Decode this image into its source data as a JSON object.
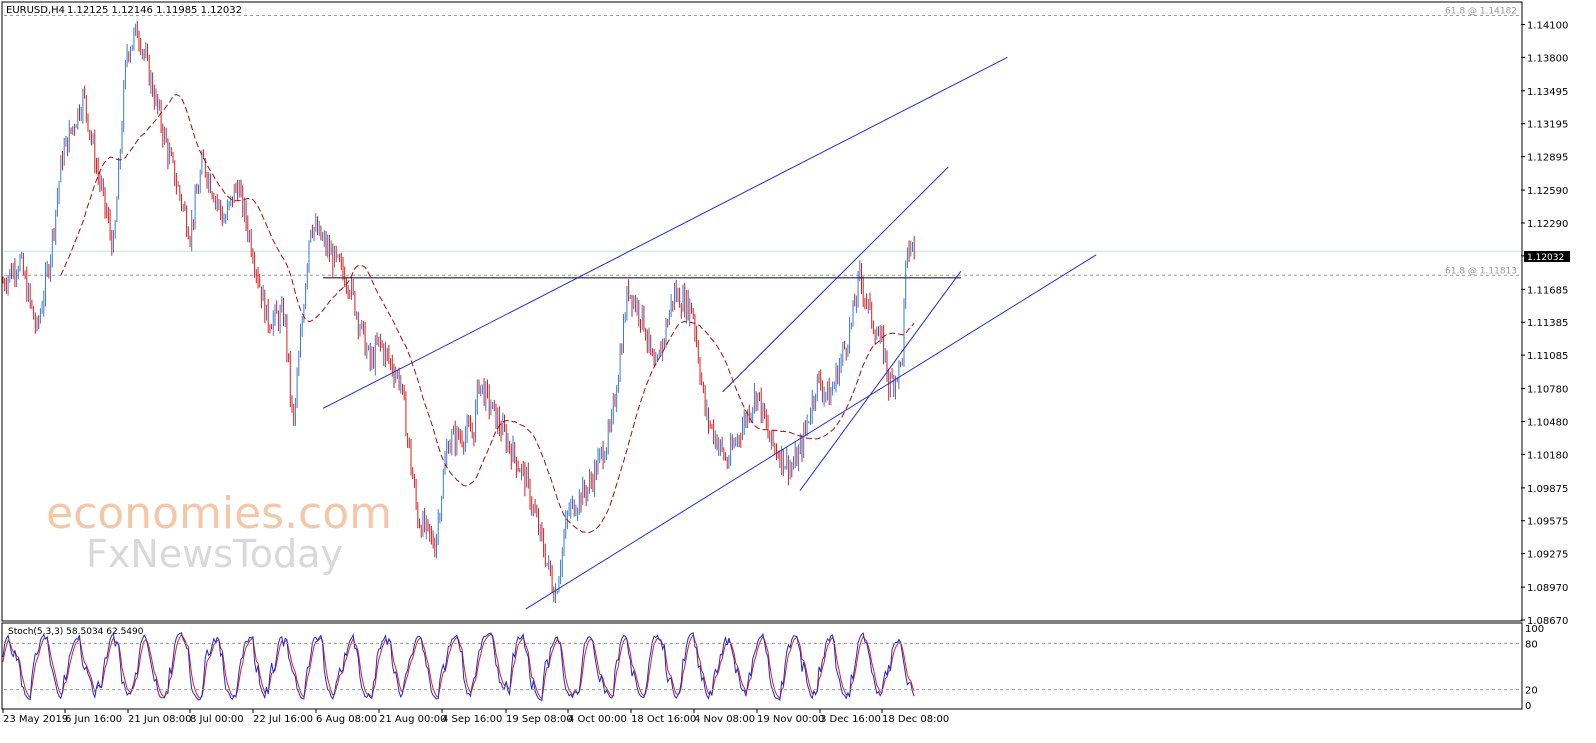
{
  "header": {
    "symbol": "EURUSD,H4",
    "ohlc": "1.12125 1.12146 1.11985 1.12032"
  },
  "indicator": {
    "label": "Stoch(5,3,3) 58.5034 62.5490",
    "scale": [
      100,
      80,
      20,
      0
    ],
    "levels": [
      80,
      20
    ]
  },
  "watermark": {
    "line1": "economies.com",
    "line2": "FxNewsToday"
  },
  "fib_labels": [
    {
      "text": "61.8 @ 1.14182",
      "price": 1.14182
    },
    {
      "text": "61.8 @ 1.11813",
      "price": 1.11813
    }
  ],
  "colors": {
    "bull": "#3a7ad1",
    "bear": "#d81e1e",
    "ma": "#a01010",
    "trend": "#1f2fd6",
    "price_line": "#bfe3ee",
    "stoch_main": "#1c2bd6",
    "stoch_signal": "#e02020"
  },
  "chart_data": {
    "type": "candlestick",
    "instrument": "EURUSD",
    "timeframe": "H4",
    "current_price": "1.12032",
    "ylim": [
      1.0867,
      1.1425
    ],
    "y_ticks": [
      "1.14100",
      "1.13800",
      "1.13495",
      "1.13195",
      "1.12895",
      "1.12590",
      "1.12290",
      "1.11990",
      "1.11685",
      "1.11385",
      "1.11085",
      "1.10780",
      "1.10480",
      "1.10180",
      "1.09875",
      "1.09575",
      "1.09275",
      "1.08970",
      "1.08670"
    ],
    "x_ticks": [
      "23 May 2019",
      "6 Jun 16:00",
      "21 Jun 08:00",
      "8 Jul 00:00",
      "22 Jul 16:00",
      "6 Aug 08:00",
      "21 Aug 00:00",
      "4 Sep 16:00",
      "19 Sep 08:00",
      "4 Oct 00:00",
      "18 Oct 16:00",
      "4 Nov 08:00",
      "19 Nov 00:00",
      "3 Dec 16:00",
      "18 Dec 08:00"
    ],
    "x_range": [
      "23 May 2019",
      "24 Dec 2019"
    ],
    "close_path": [
      [
        "23 May 2019",
        1.1175
      ],
      [
        "27 May 2019",
        1.1195
      ],
      [
        "31 May 2019",
        1.113
      ],
      [
        "3 Jun 2019",
        1.1195
      ],
      [
        "6 Jun 2019",
        1.129
      ],
      [
        "11 Jun 2019",
        1.1345
      ],
      [
        "14 Jun 2019",
        1.128
      ],
      [
        "18 Jun 2019",
        1.1205
      ],
      [
        "21 Jun 2019",
        1.1385
      ],
      [
        "24 Jun 2019",
        1.1405
      ],
      [
        "27 Jun 2019",
        1.1365
      ],
      [
        "2 Jul 2019",
        1.1295
      ],
      [
        "8 Jul 2019",
        1.122
      ],
      [
        "11 Jul 2019",
        1.1285
      ],
      [
        "16 Jul 2019",
        1.123
      ],
      [
        "19 Jul 2019",
        1.1265
      ],
      [
        "22 Jul 2019",
        1.1215
      ],
      [
        "26 Jul 2019",
        1.114
      ],
      [
        "30 Jul 2019",
        1.1145
      ],
      [
        "1 Aug 2019",
        1.104
      ],
      [
        "5 Aug 2019",
        1.123
      ],
      [
        "9 Aug 2019",
        1.1205
      ],
      [
        "14 Aug 2019",
        1.1175
      ],
      [
        "19 Aug 2019",
        1.11
      ],
      [
        "21 Aug 2019",
        1.112
      ],
      [
        "26 Aug 2019",
        1.1085
      ],
      [
        "30 Aug 2019",
        1.096
      ],
      [
        "3 Sep 2019",
        1.0935
      ],
      [
        "6 Sep 2019",
        1.103
      ],
      [
        "12 Sep 2019",
        1.104
      ],
      [
        "13 Sep 2019",
        1.1085
      ],
      [
        "19 Sep 2019",
        1.1035
      ],
      [
        "24 Sep 2019",
        1.0995
      ],
      [
        "1 Oct 2019",
        1.089
      ],
      [
        "4 Oct 2019",
        1.0965
      ],
      [
        "9 Oct 2019",
        1.099
      ],
      [
        "14 Oct 2019",
        1.104
      ],
      [
        "18 Oct 2019",
        1.117
      ],
      [
        "22 Oct 2019",
        1.114
      ],
      [
        "25 Oct 2019",
        1.109
      ],
      [
        "30 Oct 2019",
        1.1165
      ],
      [
        "4 Nov 2019",
        1.115
      ],
      [
        "7 Nov 2019",
        1.1055
      ],
      [
        "12 Nov 2019",
        1.101
      ],
      [
        "14 Nov 2019",
        1.103
      ],
      [
        "19 Nov 2019",
        1.1075
      ],
      [
        "22 Nov 2019",
        1.103
      ],
      [
        "27 Nov 2019",
        1.1005
      ],
      [
        "29 Nov 2019",
        1.102
      ],
      [
        "3 Dec 2019",
        1.1085
      ],
      [
        "6 Dec 2019",
        1.107
      ],
      [
        "11 Dec 2019",
        1.1135
      ],
      [
        "13 Dec 2019",
        1.118
      ],
      [
        "16 Dec 2019",
        1.114
      ],
      [
        "19 Dec 2019",
        1.111
      ],
      [
        "20 Dec 2019",
        1.108
      ],
      [
        "23 Dec 2019",
        1.11
      ],
      [
        "24 Dec 2019",
        1.119
      ],
      [
        "25 Dec 2019",
        1.121
      ],
      [
        "26 Dec 2019",
        1.1203
      ]
    ],
    "trendlines": [
      {
        "from": [
          "8 Aug 2019",
          1.106
        ],
        "to": [
          "17 Jan 2020",
          1.138
        ]
      },
      {
        "from": [
          "24 Sep 2019",
          1.0877
        ],
        "to": [
          "7 Feb 2020",
          1.12
        ]
      },
      {
        "from": [
          "29 Nov 2019",
          1.0985
        ],
        "to": [
          "6 Jan 2020",
          1.1185
        ]
      },
      {
        "from": [
          "11 Nov 2019",
          1.1075
        ],
        "to": [
          "3 Jan 2020",
          1.128
        ]
      }
    ],
    "horizontal_line": {
      "from": "8 Aug 2019",
      "to": "6 Jan 2020",
      "price": 1.1179
    }
  }
}
